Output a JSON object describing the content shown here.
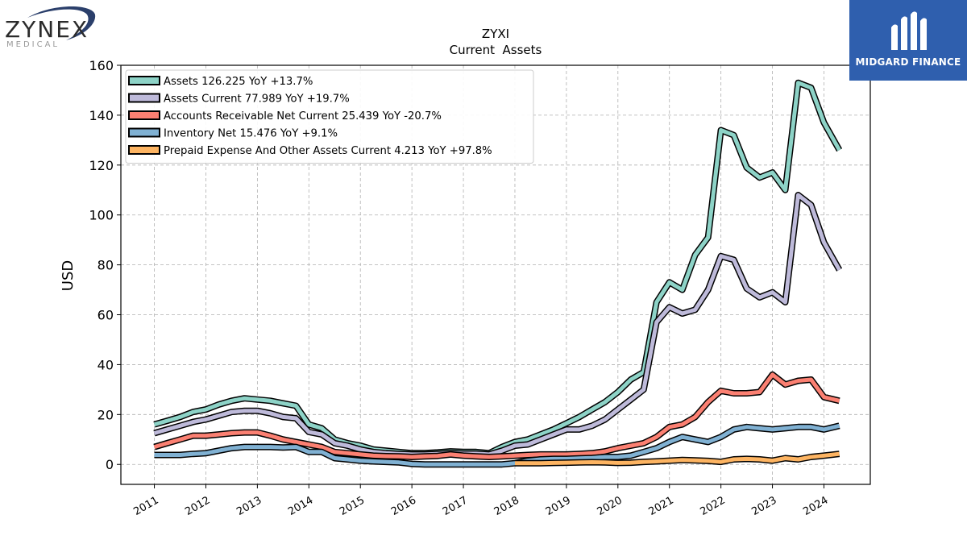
{
  "logos": {
    "left": {
      "word": "ZYNEX",
      "sub": "MEDICAL"
    },
    "right": {
      "text": "MIDGARD FINANCE"
    }
  },
  "chart_data": {
    "type": "line",
    "title": "ZYXI",
    "subtitle": "Current  Assets",
    "xlabel": "",
    "ylabel": "USD",
    "xlim": [
      2010.35,
      2024.9
    ],
    "ylim": [
      -8,
      160
    ],
    "yticks": [
      0,
      20,
      40,
      60,
      80,
      100,
      120,
      140,
      160
    ],
    "xticks": [
      "2011",
      "2012",
      "2013",
      "2014",
      "2015",
      "2016",
      "2017",
      "2018",
      "2019",
      "2020",
      "2021",
      "2022",
      "2023",
      "2024"
    ],
    "grid": true,
    "legend_position": "top-left",
    "series": [
      {
        "name": "Assets  126.225 YoY +13.7%",
        "color": "#8dd3c7",
        "x": [
          2011.0,
          2011.25,
          2011.5,
          2011.75,
          2012.0,
          2012.25,
          2012.5,
          2012.75,
          2013.0,
          2013.25,
          2013.5,
          2013.75,
          2014.0,
          2014.25,
          2014.5,
          2014.75,
          2015.0,
          2015.25,
          2015.5,
          2015.75,
          2016.0,
          2016.25,
          2016.5,
          2016.75,
          2017.0,
          2017.25,
          2017.5,
          2017.75,
          2018.0,
          2018.25,
          2018.5,
          2018.75,
          2019.0,
          2019.25,
          2019.5,
          2019.75,
          2020.0,
          2020.25,
          2020.5,
          2020.75,
          2021.0,
          2021.25,
          2021.5,
          2021.75,
          2022.0,
          2022.25,
          2022.5,
          2022.75,
          2023.0,
          2023.25,
          2023.5,
          2023.75,
          2024.0,
          2024.3
        ],
        "y": [
          16,
          17.5,
          19,
          21,
          22,
          24,
          25.5,
          26.5,
          26,
          25.5,
          24.5,
          23.5,
          16,
          14.5,
          10,
          8.5,
          7.5,
          6,
          5.5,
          5,
          4.5,
          4.5,
          4.8,
          5.2,
          5,
          5,
          4.5,
          7,
          9,
          10,
          12,
          14,
          16.5,
          19,
          22,
          25,
          29,
          34,
          37,
          65,
          73,
          70,
          84,
          91,
          134,
          132,
          119,
          115,
          117,
          110,
          153,
          151,
          137,
          126
        ]
      },
      {
        "name": "Assets Current  77.989 YoY +19.7%",
        "color": "#bebada",
        "x": [
          2011.0,
          2011.25,
          2011.5,
          2011.75,
          2012.0,
          2012.25,
          2012.5,
          2012.75,
          2013.0,
          2013.25,
          2013.5,
          2013.75,
          2014.0,
          2014.25,
          2014.5,
          2014.75,
          2015.0,
          2015.25,
          2015.5,
          2015.75,
          2016.0,
          2016.25,
          2016.5,
          2016.75,
          2017.0,
          2017.25,
          2017.5,
          2017.75,
          2018.0,
          2018.25,
          2018.5,
          2018.75,
          2019.0,
          2019.25,
          2019.5,
          2019.75,
          2020.0,
          2020.25,
          2020.5,
          2020.75,
          2021.0,
          2021.25,
          2021.5,
          2021.75,
          2022.0,
          2022.25,
          2022.5,
          2022.75,
          2023.0,
          2023.25,
          2023.5,
          2023.75,
          2024.0,
          2024.3
        ],
        "y": [
          12.5,
          14,
          15.5,
          17,
          18,
          19.5,
          21,
          21.5,
          21.5,
          20.5,
          19,
          18.5,
          13,
          12,
          8.5,
          7.5,
          6,
          5,
          4.5,
          4.2,
          4,
          4,
          4.2,
          4.5,
          4.3,
          4.3,
          4,
          5.5,
          7.5,
          8,
          10,
          12,
          14,
          14,
          15.5,
          18,
          22,
          26,
          30,
          57,
          63,
          60.5,
          62,
          70,
          83.5,
          82,
          70.5,
          67,
          69,
          65,
          108,
          104,
          89,
          78
        ]
      },
      {
        "name": "Accounts Receivable Net Current  25.439 YoY -20.7%",
        "color": "#fb8072",
        "x": [
          2011.0,
          2011.25,
          2011.5,
          2011.75,
          2012.0,
          2012.25,
          2012.5,
          2012.75,
          2013.0,
          2013.25,
          2013.5,
          2013.75,
          2014.0,
          2014.25,
          2014.5,
          2014.75,
          2015.0,
          2015.25,
          2015.5,
          2015.75,
          2016.0,
          2016.25,
          2016.5,
          2016.75,
          2017.0,
          2017.25,
          2017.5,
          2017.75,
          2018.0,
          2018.25,
          2018.5,
          2018.75,
          2019.0,
          2019.25,
          2019.5,
          2019.75,
          2020.0,
          2020.25,
          2020.5,
          2020.75,
          2021.0,
          2021.25,
          2021.5,
          2021.75,
          2022.0,
          2022.25,
          2022.5,
          2022.75,
          2023.0,
          2023.25,
          2023.5,
          2023.75,
          2024.0,
          2024.3
        ],
        "y": [
          7,
          8.5,
          10,
          11.5,
          11.5,
          12,
          12.5,
          12.8,
          12.8,
          11.5,
          10,
          9,
          8,
          7,
          5,
          4.5,
          4,
          3.5,
          3.3,
          3.2,
          3,
          3.2,
          3.4,
          4,
          3.5,
          3.2,
          3,
          3.2,
          3.5,
          3.8,
          4,
          4,
          4,
          4.2,
          4.5,
          5.2,
          6.5,
          7.5,
          8.5,
          11,
          15,
          16,
          19,
          25,
          29.5,
          28.5,
          28.5,
          29,
          36,
          32,
          33.5,
          34,
          27,
          25.5
        ]
      },
      {
        "name": "Inventory Net  15.476 YoY +9.1%",
        "color": "#80b1d3",
        "x": [
          2011.0,
          2011.25,
          2011.5,
          2011.75,
          2012.0,
          2012.25,
          2012.5,
          2012.75,
          2013.0,
          2013.25,
          2013.5,
          2013.75,
          2014.0,
          2014.25,
          2014.5,
          2014.75,
          2015.0,
          2015.25,
          2015.5,
          2015.75,
          2016.0,
          2016.25,
          2016.5,
          2016.75,
          2017.0,
          2017.25,
          2017.5,
          2017.75,
          2018.0,
          2018.25,
          2018.5,
          2018.75,
          2019.0,
          2019.25,
          2019.5,
          2019.75,
          2020.0,
          2020.25,
          2020.5,
          2020.75,
          2021.0,
          2021.25,
          2021.5,
          2021.75,
          2022.0,
          2022.25,
          2022.5,
          2022.75,
          2023.0,
          2023.25,
          2023.5,
          2023.75,
          2024.0,
          2024.3
        ],
        "y": [
          3.8,
          3.8,
          3.8,
          4.2,
          4.5,
          5.5,
          6.5,
          7,
          7,
          7,
          6.8,
          7,
          5,
          5,
          2.5,
          2,
          1.5,
          1.2,
          1,
          0.8,
          0.2,
          0,
          0,
          0,
          0,
          0,
          0,
          0,
          0.5,
          1.5,
          2,
          2.2,
          2.2,
          2.4,
          2.6,
          3,
          3,
          3.5,
          5,
          6.5,
          9,
          11,
          10,
          9,
          11,
          14,
          15,
          14.5,
          14,
          14.5,
          15,
          15,
          14,
          15.5
        ]
      },
      {
        "name": "Prepaid Expense And Other Assets Current  4.213 YoY +97.8%",
        "color": "#fdb462",
        "x": [
          2018.0,
          2018.25,
          2018.5,
          2018.75,
          2019.0,
          2019.25,
          2019.5,
          2019.75,
          2020.0,
          2020.25,
          2020.5,
          2020.75,
          2021.0,
          2021.25,
          2021.5,
          2021.75,
          2022.0,
          2022.25,
          2022.5,
          2022.75,
          2023.0,
          2023.25,
          2023.5,
          2023.75,
          2024.0,
          2024.3
        ],
        "y": [
          0.5,
          0.5,
          0.5,
          0.6,
          0.7,
          0.8,
          0.9,
          0.8,
          0.6,
          0.7,
          1,
          1.2,
          1.5,
          1.8,
          1.6,
          1.4,
          1,
          2,
          2.2,
          2,
          1.5,
          2.5,
          2,
          3,
          3.5,
          4.2
        ]
      }
    ]
  }
}
